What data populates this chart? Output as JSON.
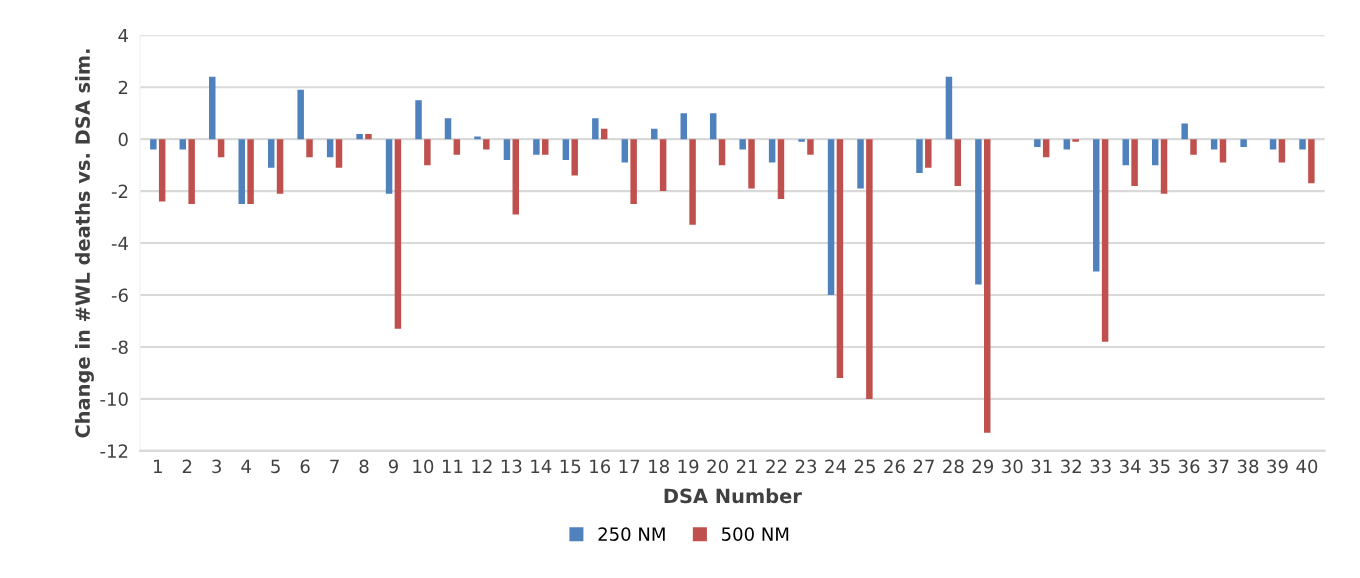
{
  "chart_data": {
    "type": "bar",
    "xlabel": "DSA Number",
    "ylabel": "Change in #WL deaths vs. DSA sim.",
    "categories": [
      "1",
      "2",
      "3",
      "4",
      "5",
      "6",
      "7",
      "8",
      "9",
      "10",
      "11",
      "12",
      "13",
      "14",
      "15",
      "16",
      "17",
      "18",
      "19",
      "20",
      "21",
      "22",
      "23",
      "24",
      "25",
      "26",
      "27",
      "28",
      "29",
      "30",
      "31",
      "32",
      "33",
      "34",
      "35",
      "36",
      "37",
      "38",
      "39",
      "40"
    ],
    "series": [
      {
        "name": "250 NM",
        "color": "#4f81bd",
        "values": [
          -0.4,
          -0.4,
          2.4,
          -2.5,
          -1.1,
          1.9,
          -0.7,
          0.2,
          -2.1,
          1.5,
          0.8,
          0.1,
          -0.8,
          -0.6,
          -0.8,
          0.8,
          -0.9,
          0.4,
          1.0,
          1.0,
          -0.4,
          -0.9,
          -0.1,
          -6.0,
          -1.9,
          0,
          -1.3,
          2.4,
          -5.6,
          0,
          -0.3,
          -0.4,
          -5.1,
          -1.0,
          -1.0,
          0.6,
          -0.4,
          -0.3,
          -0.4,
          -0.4
        ]
      },
      {
        "name": "500 NM",
        "color": "#c0504d",
        "values": [
          -2.4,
          -2.5,
          -0.7,
          -2.5,
          -2.1,
          -0.7,
          -1.1,
          0.2,
          -7.3,
          -1.0,
          -0.6,
          -0.4,
          -2.9,
          -0.6,
          -1.4,
          0.4,
          -2.5,
          -2.0,
          -3.3,
          -1.0,
          -1.9,
          -2.3,
          -0.6,
          -9.2,
          -10.0,
          0,
          -1.1,
          -1.8,
          -11.3,
          0,
          -0.7,
          -0.1,
          -7.8,
          -1.8,
          -2.1,
          -0.6,
          -0.9,
          0,
          -0.9,
          -1.7
        ]
      }
    ],
    "ylim": [
      -12,
      4
    ],
    "yticks": [
      -12,
      -10,
      -8,
      -6,
      -4,
      -2,
      0,
      2,
      4
    ],
    "grid": "y",
    "legend": "bottom"
  }
}
